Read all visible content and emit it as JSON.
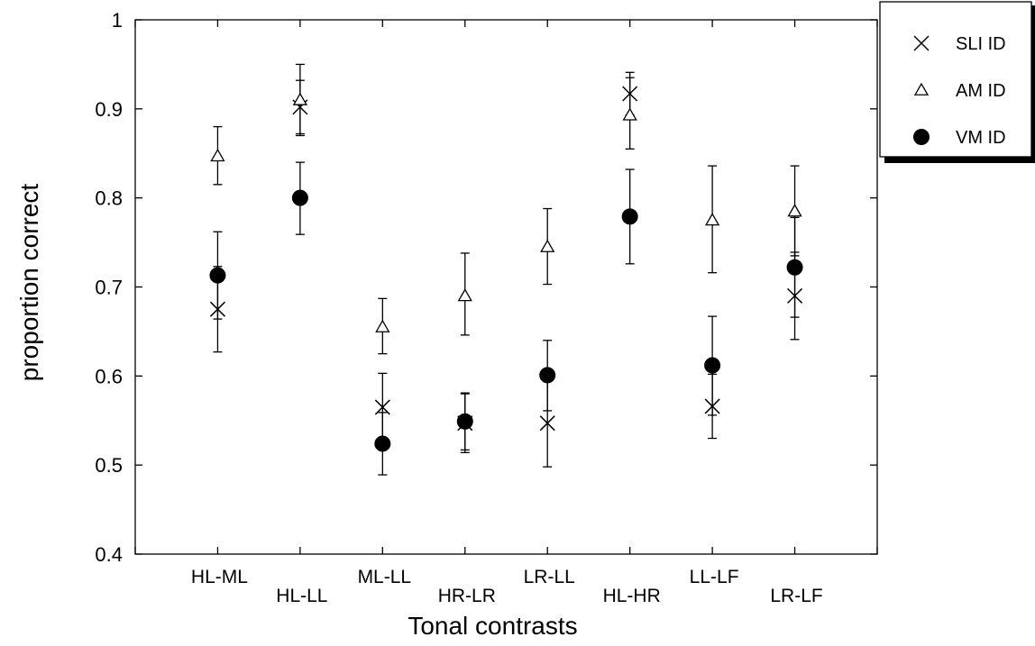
{
  "chart_data": {
    "type": "scatter",
    "xlabel": "Tonal contrasts",
    "ylabel": "proportion correct",
    "ylim": [
      0.4,
      1
    ],
    "yticks": [
      "0.4",
      "0.5",
      "0.6",
      "0.7",
      "0.8",
      "0.9",
      "1"
    ],
    "grid": false,
    "legend_position": "top-right",
    "categories": [
      "HL-ML",
      "HL-LL",
      "ML-LL",
      "HR-LR",
      "LR-LL",
      "HL-HR",
      "LL-LF",
      "LR-LF"
    ],
    "series": [
      {
        "name": "SLI ID",
        "marker": "x",
        "values": [
          0.675,
          0.902,
          0.565,
          0.547,
          0.547,
          0.917,
          0.566,
          0.69
        ],
        "err_low": [
          0.627,
          0.872,
          0.526,
          0.514,
          0.498,
          0.893,
          0.53,
          0.641
        ],
        "err_high": [
          0.723,
          0.932,
          0.603,
          0.58,
          0.596,
          0.941,
          0.602,
          0.739
        ]
      },
      {
        "name": "AM ID",
        "marker": "triangle",
        "values": [
          0.847,
          0.91,
          0.655,
          0.69,
          0.745,
          0.893,
          0.775,
          0.785
        ],
        "err_low": [
          0.815,
          0.87,
          0.625,
          0.646,
          0.703,
          0.855,
          0.716,
          0.735
        ],
        "err_high": [
          0.88,
          0.95,
          0.687,
          0.738,
          0.788,
          0.935,
          0.836,
          0.836
        ]
      },
      {
        "name": "VM ID",
        "marker": "circle",
        "values": [
          0.713,
          0.8,
          0.524,
          0.549,
          0.601,
          0.779,
          0.612,
          0.722
        ],
        "err_low": [
          0.664,
          0.759,
          0.489,
          0.517,
          0.561,
          0.726,
          0.556,
          0.666
        ],
        "err_high": [
          0.762,
          0.84,
          0.559,
          0.581,
          0.64,
          0.832,
          0.667,
          0.778
        ]
      }
    ]
  }
}
